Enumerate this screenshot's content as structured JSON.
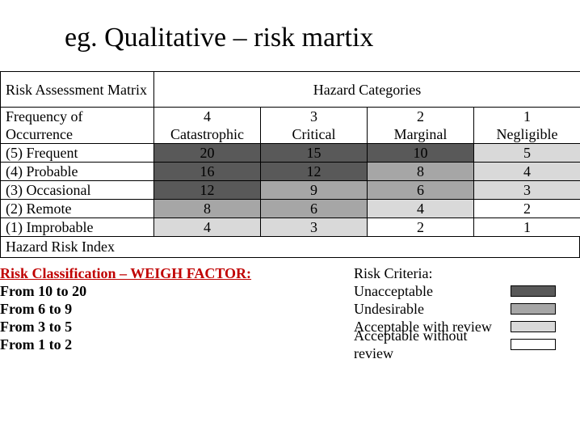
{
  "title": "eg. Qualitative – risk martix",
  "matrix": {
    "header_left": "Risk Assessment Matrix",
    "header_right": "Hazard Categories",
    "freq_label": "Frequency of Occurrence",
    "hazard_cols": [
      {
        "num": "4",
        "name": "Catastrophic"
      },
      {
        "num": "3",
        "name": "Critical"
      },
      {
        "num": "2",
        "name": "Marginal"
      },
      {
        "num": "1",
        "name": "Negligible"
      }
    ],
    "rows": [
      {
        "label": "(5) Frequent",
        "cells": [
          "20",
          "15",
          "10",
          "5"
        ]
      },
      {
        "label": "(4) Probable",
        "cells": [
          "16",
          "12",
          "8",
          "4"
        ]
      },
      {
        "label": "(3) Occasional",
        "cells": [
          "12",
          "9",
          "6",
          "3"
        ]
      },
      {
        "label": "(2) Remote",
        "cells": [
          "8",
          "6",
          "4",
          "2"
        ]
      },
      {
        "label": "(1) Improbable",
        "cells": [
          "4",
          "3",
          "2",
          "1"
        ]
      }
    ],
    "cell_bg": {
      "unacceptable": "#595959",
      "undesirable": "#a6a6a6",
      "acceptable_review": "#d9d9d9",
      "acceptable_no_review": "#ffffff"
    },
    "hri_label": "Hazard Risk Index"
  },
  "classification": {
    "heading": "Risk Classification – WEIGH FACTOR:",
    "lines": [
      "From 10 to 20",
      "From 6 to 9",
      "From 3 to 5",
      "From 1 to 2"
    ]
  },
  "criteria": {
    "heading": "Risk Criteria:",
    "items": [
      {
        "label": "Unacceptable",
        "color": "#595959"
      },
      {
        "label": "Undesirable",
        "color": "#a6a6a6"
      },
      {
        "label": "Acceptable with review",
        "color": "#d9d9d9"
      },
      {
        "label": "Acceptable without review",
        "color": "#ffffff"
      }
    ]
  },
  "font": {
    "title_pt": 34,
    "body_pt": 18
  }
}
